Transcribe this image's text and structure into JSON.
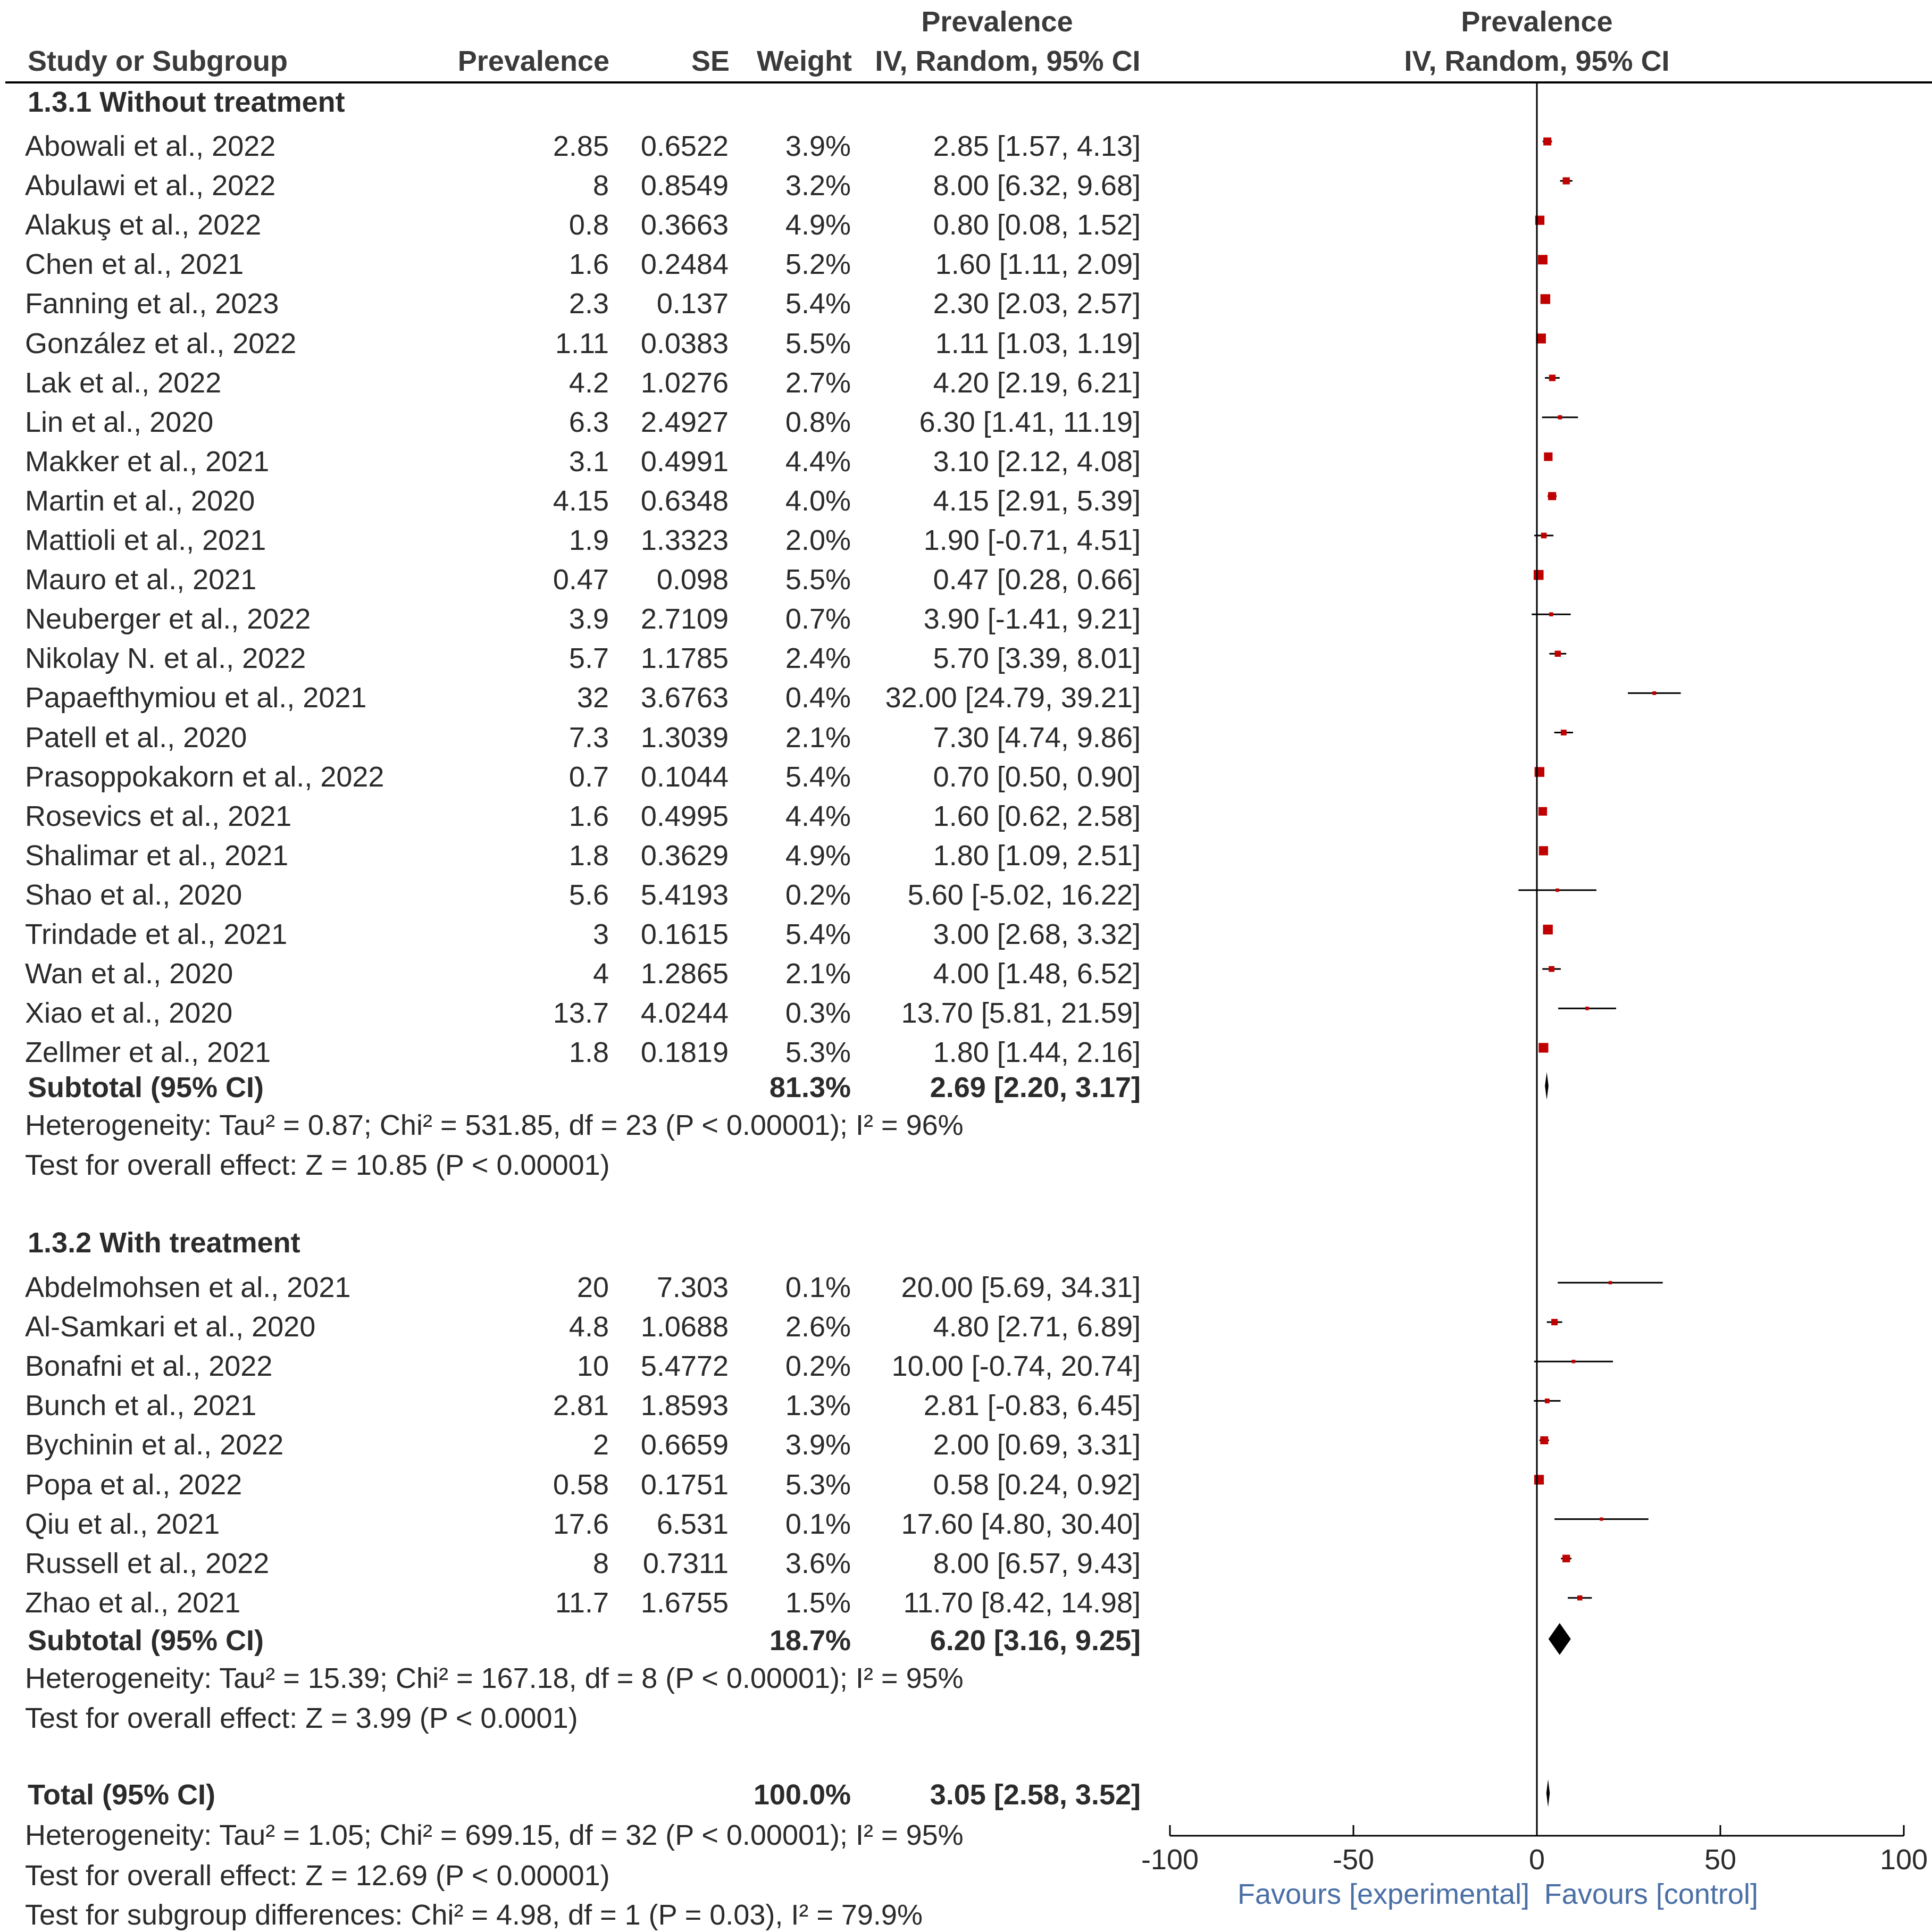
{
  "headers": {
    "study": "Study or Subgroup",
    "prevalence": "Prevalence",
    "se": "SE",
    "weight": "Weight",
    "effect_top": "Prevalence",
    "effect_bottom": "IV, Random, 95% CI",
    "plot_top": "Prevalence",
    "plot_bottom": "IV, Random, 95% CI"
  },
  "chart_data": {
    "type": "forest",
    "axis": {
      "xlim": [
        -100,
        100
      ],
      "ticks": [
        -100,
        -50,
        0,
        50,
        100
      ],
      "tick_labels": [
        "-100",
        "-50",
        "0",
        "50",
        "100"
      ]
    },
    "favours_left": "Favours [experimental]",
    "favours_right": "Favours [control]",
    "colors": {
      "square": "#c00000",
      "line": "#000000",
      "diamond": "#000000"
    },
    "groups": [
      {
        "title": "1.3.1 Without treatment",
        "studies": [
          {
            "name": "Abowali et al., 2022",
            "prev": "2.85",
            "se": "0.6522",
            "weight": "3.9%",
            "ci": "2.85 [1.57, 4.13]",
            "est": 2.85,
            "lo": 1.57,
            "hi": 4.13,
            "w": 3.9
          },
          {
            "name": "Abulawi et al., 2022",
            "prev": "8",
            "se": "0.8549",
            "weight": "3.2%",
            "ci": "8.00 [6.32, 9.68]",
            "est": 8.0,
            "lo": 6.32,
            "hi": 9.68,
            "w": 3.2
          },
          {
            "name": "Alakuş et al., 2022",
            "prev": "0.8",
            "se": "0.3663",
            "weight": "4.9%",
            "ci": "0.80 [0.08, 1.52]",
            "est": 0.8,
            "lo": 0.08,
            "hi": 1.52,
            "w": 4.9
          },
          {
            "name": "Chen et al., 2021",
            "prev": "1.6",
            "se": "0.2484",
            "weight": "5.2%",
            "ci": "1.60 [1.11, 2.09]",
            "est": 1.6,
            "lo": 1.11,
            "hi": 2.09,
            "w": 5.2
          },
          {
            "name": "Fanning et al., 2023",
            "prev": "2.3",
            "se": "0.137",
            "weight": "5.4%",
            "ci": "2.30 [2.03, 2.57]",
            "est": 2.3,
            "lo": 2.03,
            "hi": 2.57,
            "w": 5.4
          },
          {
            "name": "González et al., 2022",
            "prev": "1.11",
            "se": "0.0383",
            "weight": "5.5%",
            "ci": "1.11 [1.03, 1.19]",
            "est": 1.11,
            "lo": 1.03,
            "hi": 1.19,
            "w": 5.5
          },
          {
            "name": "Lak et al., 2022",
            "prev": "4.2",
            "se": "1.0276",
            "weight": "2.7%",
            "ci": "4.20 [2.19, 6.21]",
            "est": 4.2,
            "lo": 2.19,
            "hi": 6.21,
            "w": 2.7
          },
          {
            "name": "Lin et al., 2020",
            "prev": "6.3",
            "se": "2.4927",
            "weight": "0.8%",
            "ci": "6.30 [1.41, 11.19]",
            "est": 6.3,
            "lo": 1.41,
            "hi": 11.19,
            "w": 0.8
          },
          {
            "name": "Makker et al., 2021",
            "prev": "3.1",
            "se": "0.4991",
            "weight": "4.4%",
            "ci": "3.10 [2.12, 4.08]",
            "est": 3.1,
            "lo": 2.12,
            "hi": 4.08,
            "w": 4.4
          },
          {
            "name": "Martin et al., 2020",
            "prev": "4.15",
            "se": "0.6348",
            "weight": "4.0%",
            "ci": "4.15 [2.91, 5.39]",
            "est": 4.15,
            "lo": 2.91,
            "hi": 5.39,
            "w": 4.0
          },
          {
            "name": "Mattioli et al., 2021",
            "prev": "1.9",
            "se": "1.3323",
            "weight": "2.0%",
            "ci": "1.90 [-0.71, 4.51]",
            "est": 1.9,
            "lo": -0.71,
            "hi": 4.51,
            "w": 2.0
          },
          {
            "name": "Mauro et al., 2021",
            "prev": "0.47",
            "se": "0.098",
            "weight": "5.5%",
            "ci": "0.47 [0.28, 0.66]",
            "est": 0.47,
            "lo": 0.28,
            "hi": 0.66,
            "w": 5.5
          },
          {
            "name": "Neuberger et al., 2022",
            "prev": "3.9",
            "se": "2.7109",
            "weight": "0.7%",
            "ci": "3.90 [-1.41, 9.21]",
            "est": 3.9,
            "lo": -1.41,
            "hi": 9.21,
            "w": 0.7
          },
          {
            "name": "Nikolay N. et al., 2022",
            "prev": "5.7",
            "se": "1.1785",
            "weight": "2.4%",
            "ci": "5.70 [3.39, 8.01]",
            "est": 5.7,
            "lo": 3.39,
            "hi": 8.01,
            "w": 2.4
          },
          {
            "name": "Papaefthymiou et al., 2021",
            "prev": "32",
            "se": "3.6763",
            "weight": "0.4%",
            "ci": "32.00 [24.79, 39.21]",
            "est": 32.0,
            "lo": 24.79,
            "hi": 39.21,
            "w": 0.4
          },
          {
            "name": "Patell et al., 2020",
            "prev": "7.3",
            "se": "1.3039",
            "weight": "2.1%",
            "ci": "7.30 [4.74, 9.86]",
            "est": 7.3,
            "lo": 4.74,
            "hi": 9.86,
            "w": 2.1
          },
          {
            "name": "Prasoppokakorn et al., 2022",
            "prev": "0.7",
            "se": "0.1044",
            "weight": "5.4%",
            "ci": "0.70 [0.50, 0.90]",
            "est": 0.7,
            "lo": 0.5,
            "hi": 0.9,
            "w": 5.4
          },
          {
            "name": "Rosevics et al., 2021",
            "prev": "1.6",
            "se": "0.4995",
            "weight": "4.4%",
            "ci": "1.60 [0.62, 2.58]",
            "est": 1.6,
            "lo": 0.62,
            "hi": 2.58,
            "w": 4.4
          },
          {
            "name": "Shalimar et al., 2021",
            "prev": "1.8",
            "se": "0.3629",
            "weight": "4.9%",
            "ci": "1.80 [1.09, 2.51]",
            "est": 1.8,
            "lo": 1.09,
            "hi": 2.51,
            "w": 4.9
          },
          {
            "name": "Shao et al., 2020",
            "prev": "5.6",
            "se": "5.4193",
            "weight": "0.2%",
            "ci": "5.60 [-5.02, 16.22]",
            "est": 5.6,
            "lo": -5.02,
            "hi": 16.22,
            "w": 0.2
          },
          {
            "name": "Trindade et al., 2021",
            "prev": "3",
            "se": "0.1615",
            "weight": "5.4%",
            "ci": "3.00 [2.68, 3.32]",
            "est": 3.0,
            "lo": 2.68,
            "hi": 3.32,
            "w": 5.4
          },
          {
            "name": "Wan et al., 2020",
            "prev": "4",
            "se": "1.2865",
            "weight": "2.1%",
            "ci": "4.00 [1.48, 6.52]",
            "est": 4.0,
            "lo": 1.48,
            "hi": 6.52,
            "w": 2.1
          },
          {
            "name": "Xiao et al., 2020",
            "prev": "13.7",
            "se": "4.0244",
            "weight": "0.3%",
            "ci": "13.70 [5.81, 21.59]",
            "est": 13.7,
            "lo": 5.81,
            "hi": 21.59,
            "w": 0.3
          },
          {
            "name": "Zellmer et al., 2021",
            "prev": "1.8",
            "se": "0.1819",
            "weight": "5.3%",
            "ci": "1.80 [1.44, 2.16]",
            "est": 1.8,
            "lo": 1.44,
            "hi": 2.16,
            "w": 5.3
          }
        ],
        "subtotal": {
          "label": "Subtotal (95% CI)",
          "weight": "81.3%",
          "ci": "2.69 [2.20, 3.17]",
          "est": 2.69,
          "lo": 2.2,
          "hi": 3.17
        },
        "heterogeneity": "Heterogeneity: Tau² = 0.87; Chi² = 531.85, df = 23 (P < 0.00001); I² = 96%",
        "overall": "Test for overall effect: Z = 10.85 (P < 0.00001)"
      },
      {
        "title": "1.3.2 With treatment",
        "studies": [
          {
            "name": "Abdelmohsen et al., 2021",
            "prev": "20",
            "se": "7.303",
            "weight": "0.1%",
            "ci": "20.00 [5.69, 34.31]",
            "est": 20.0,
            "lo": 5.69,
            "hi": 34.31,
            "w": 0.1
          },
          {
            "name": "Al-Samkari et al., 2020",
            "prev": "4.8",
            "se": "1.0688",
            "weight": "2.6%",
            "ci": "4.80 [2.71, 6.89]",
            "est": 4.8,
            "lo": 2.71,
            "hi": 6.89,
            "w": 2.6
          },
          {
            "name": "Bonafni et al., 2022",
            "prev": "10",
            "se": "5.4772",
            "weight": "0.2%",
            "ci": "10.00 [-0.74, 20.74]",
            "est": 10.0,
            "lo": -0.74,
            "hi": 20.74,
            "w": 0.2
          },
          {
            "name": "Bunch et al., 2021",
            "prev": "2.81",
            "se": "1.8593",
            "weight": "1.3%",
            "ci": "2.81 [-0.83, 6.45]",
            "est": 2.81,
            "lo": -0.83,
            "hi": 6.45,
            "w": 1.3
          },
          {
            "name": "Bychinin et al., 2022",
            "prev": "2",
            "se": "0.6659",
            "weight": "3.9%",
            "ci": "2.00 [0.69, 3.31]",
            "est": 2.0,
            "lo": 0.69,
            "hi": 3.31,
            "w": 3.9
          },
          {
            "name": "Popa et al., 2022",
            "prev": "0.58",
            "se": "0.1751",
            "weight": "5.3%",
            "ci": "0.58 [0.24, 0.92]",
            "est": 0.58,
            "lo": 0.24,
            "hi": 0.92,
            "w": 5.3
          },
          {
            "name": "Qiu et al., 2021",
            "prev": "17.6",
            "se": "6.531",
            "weight": "0.1%",
            "ci": "17.60 [4.80, 30.40]",
            "est": 17.6,
            "lo": 4.8,
            "hi": 30.4,
            "w": 0.1
          },
          {
            "name": "Russell et al., 2022",
            "prev": "8",
            "se": "0.7311",
            "weight": "3.6%",
            "ci": "8.00 [6.57, 9.43]",
            "est": 8.0,
            "lo": 6.57,
            "hi": 9.43,
            "w": 3.6
          },
          {
            "name": "Zhao et al., 2021",
            "prev": "11.7",
            "se": "1.6755",
            "weight": "1.5%",
            "ci": "11.70 [8.42, 14.98]",
            "est": 11.7,
            "lo": 8.42,
            "hi": 14.98,
            "w": 1.5
          }
        ],
        "subtotal": {
          "label": "Subtotal (95% CI)",
          "weight": "18.7%",
          "ci": "6.20 [3.16, 9.25]",
          "est": 6.2,
          "lo": 3.16,
          "hi": 9.25
        },
        "heterogeneity": "Heterogeneity: Tau² = 15.39; Chi² = 167.18, df = 8 (P < 0.00001); I² = 95%",
        "overall": "Test for overall effect: Z = 3.99 (P < 0.0001)"
      }
    ],
    "total": {
      "label": "Total (95% CI)",
      "weight": "100.0%",
      "ci": "3.05 [2.58, 3.52]",
      "est": 3.05,
      "lo": 2.58,
      "hi": 3.52
    },
    "total_heterogeneity": "Heterogeneity: Tau² = 1.05; Chi² = 699.15, df = 32 (P < 0.00001); I² = 95%",
    "total_overall": "Test for overall effect: Z = 12.69 (P < 0.00001)",
    "subgroup_diff": "Test for subgroup differences: Chi² = 4.98, df = 1 (P = 0.03), I² = 79.9%"
  }
}
